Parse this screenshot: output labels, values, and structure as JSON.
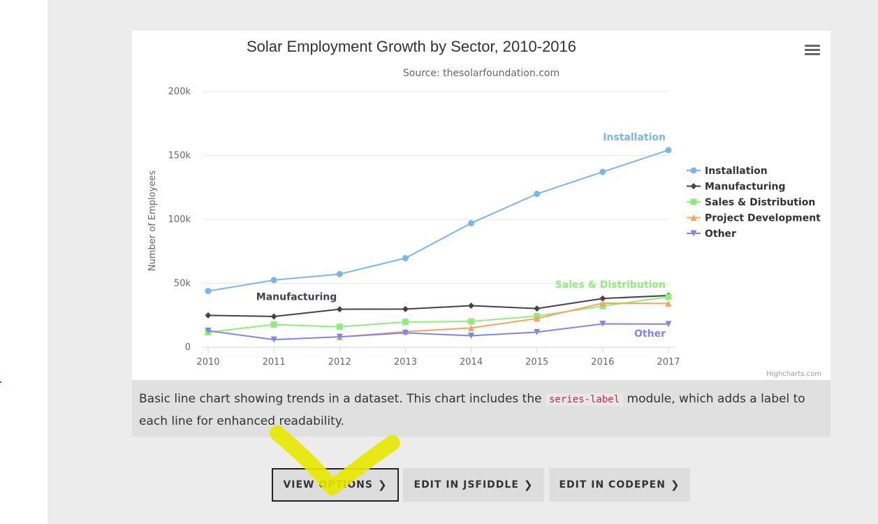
{
  "chart_data": {
    "type": "line",
    "title": "Solar Employment Growth by Sector, 2010-2016",
    "subtitle": "Source: thesolarfoundation.com",
    "ylabel": "Number of Employees",
    "xlabel": "",
    "x": [
      2010,
      2011,
      2012,
      2013,
      2014,
      2015,
      2016,
      2017
    ],
    "ylim": [
      0,
      200000
    ],
    "y_ticks": [
      "0",
      "50k",
      "100k",
      "150k",
      "200k"
    ],
    "grid": true,
    "legend": "right",
    "series": [
      {
        "name": "Installation",
        "color": "#7cb5ec",
        "marker": "circle",
        "series_label": "Installation",
        "values": [
          43934,
          52503,
          57177,
          69658,
          97031,
          119931,
          137133,
          154175
        ]
      },
      {
        "name": "Manufacturing",
        "color": "#434348",
        "marker": "diamond",
        "series_label": "Manufacturing",
        "values": [
          24916,
          24064,
          29742,
          29851,
          32490,
          30282,
          38121,
          40434
        ]
      },
      {
        "name": "Sales & Distribution",
        "color": "#90ed7d",
        "marker": "square",
        "series_label": "Sales & Distribution",
        "values": [
          11744,
          17722,
          16005,
          19771,
          20185,
          24377,
          32147,
          39387
        ]
      },
      {
        "name": "Project Development",
        "color": "#f7a35c",
        "marker": "triangle",
        "series_label": "",
        "values": [
          null,
          null,
          7988,
          12169,
          15112,
          22452,
          34400,
          34227
        ]
      },
      {
        "name": "Other",
        "color": "#8085e9",
        "marker": "triangle-down",
        "series_label": "Other",
        "values": [
          12908,
          5948,
          8105,
          11248,
          8989,
          11816,
          18274,
          18111
        ]
      }
    ],
    "credits": "Highcharts.com"
  },
  "caption": {
    "before": "Basic line chart showing trends in a dataset. This chart includes the ",
    "code": "series-label",
    "after": " module, which adds a label to each line for enhanced readability."
  },
  "buttons": {
    "view_options": "VIEW OPTIONS",
    "edit_jsfiddle": "EDIT IN JSFIDDLE",
    "edit_codepen": "EDIT IN CODEPEN"
  },
  "icons": {
    "menu": "hamburger-menu-icon",
    "chevron": "chevron-right-icon"
  },
  "colors": {
    "page_bg": "#ececec",
    "caption_bg": "#e0e0e0",
    "button_bg": "#dddddd",
    "highlight": "#e8e800"
  }
}
